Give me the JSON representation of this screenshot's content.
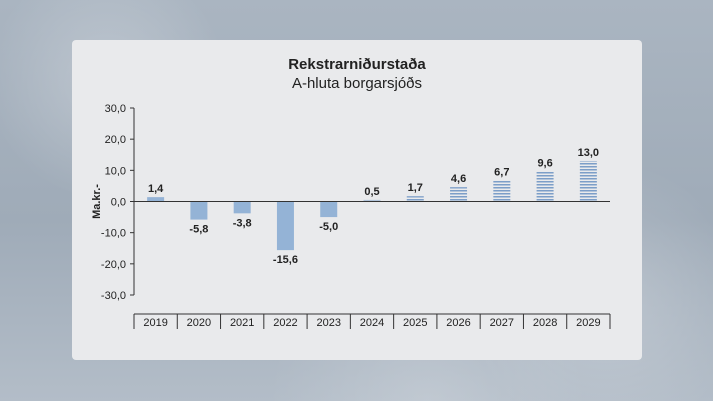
{
  "chart_data": {
    "type": "bar",
    "title": "Rekstrarniðurstaða",
    "subtitle": "A-hluta borgarsjóðs",
    "ylabel": "Ma.kr.-",
    "xlabel": "",
    "ylim": [
      -30,
      30
    ],
    "yticks": [
      30,
      20,
      10,
      0,
      -10,
      -20,
      -30
    ],
    "ytick_labels": [
      "30,0",
      "20,0",
      "10,0",
      "0,0",
      "-10,0",
      "-20,0",
      "-30,0"
    ],
    "categories": [
      "2019",
      "2020",
      "2021",
      "2022",
      "2023",
      "2024",
      "2025",
      "2026",
      "2027",
      "2028",
      "2029"
    ],
    "values": [
      1.4,
      -5.8,
      -3.8,
      -15.6,
      -5.0,
      0.5,
      1.7,
      4.6,
      6.7,
      9.6,
      13.0
    ],
    "value_labels": [
      "1,4",
      "-5,8",
      "-3,8",
      "-15,6",
      "-5,0",
      "0,5",
      "1,7",
      "4,6",
      "6,7",
      "9,6",
      "13,0"
    ],
    "bar_style": [
      "solid",
      "solid",
      "solid",
      "solid",
      "solid",
      "hatched",
      "hatched",
      "hatched",
      "hatched",
      "hatched",
      "hatched"
    ],
    "grid": false,
    "legend": "none",
    "colors": {
      "bar_fill": "#94b3d6",
      "hatch_line": "#7c9ec8",
      "axis": "#333333",
      "text": "#222222"
    }
  }
}
